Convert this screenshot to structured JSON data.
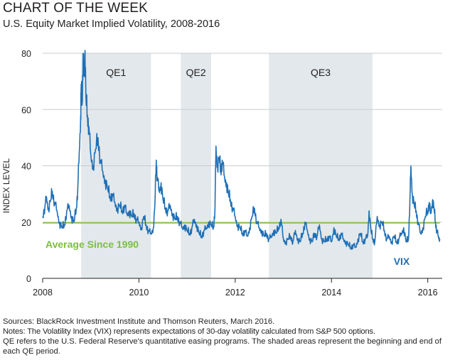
{
  "header": {
    "title": "CHART OF THE WEEK",
    "subtitle": "U.S. Equity Market Implied Volatility, 2008-2016"
  },
  "notes": {
    "sources": "Sources: BlackRock Investment Institute and Thomson Reuters, March 2016.",
    "line1": "Notes: The Volatility Index (VIX) represents expectations of 30-day volatility calculated from S&P 500 options.",
    "line2": "QE refers to the U.S. Federal Reserve's quantitative easing programs.  The shaded areas represent the beginning and end of each QE period."
  },
  "colors": {
    "series": "#1f6fb5",
    "average": "#7cbf3f",
    "shade": "#e2e8ec",
    "grid": "#c9cdd0",
    "axis": "#231f20"
  },
  "chart_data": {
    "type": "line",
    "ylabel": "INDEX LEVEL",
    "xlabel": "",
    "xlim": [
      2008.0,
      2016.3
    ],
    "ylim": [
      0,
      80
    ],
    "xticks": [
      2008,
      2010,
      2012,
      2014,
      2016
    ],
    "yticks": [
      0,
      20,
      40,
      60,
      80
    ],
    "grid": true,
    "shaded_periods": [
      {
        "label": "QE1",
        "start": 2008.8,
        "end": 2010.25
      },
      {
        "label": "QE2",
        "start": 2010.87,
        "end": 2011.5
      },
      {
        "label": "QE3",
        "start": 2012.7,
        "end": 2014.85
      }
    ],
    "average_line": {
      "label": "Average Since 1990",
      "value": 19.7
    },
    "series": [
      {
        "name": "VIX",
        "points": [
          [
            2008.0,
            22
          ],
          [
            2008.05,
            26
          ],
          [
            2008.08,
            29
          ],
          [
            2008.12,
            25
          ],
          [
            2008.17,
            28
          ],
          [
            2008.2,
            31
          ],
          [
            2008.25,
            27
          ],
          [
            2008.3,
            24
          ],
          [
            2008.35,
            20
          ],
          [
            2008.4,
            18
          ],
          [
            2008.45,
            19
          ],
          [
            2008.5,
            24
          ],
          [
            2008.55,
            26
          ],
          [
            2008.6,
            22
          ],
          [
            2008.65,
            20
          ],
          [
            2008.7,
            25
          ],
          [
            2008.73,
            32
          ],
          [
            2008.76,
            45
          ],
          [
            2008.79,
            58
          ],
          [
            2008.8,
            69
          ],
          [
            2008.82,
            62
          ],
          [
            2008.84,
            80
          ],
          [
            2008.86,
            72
          ],
          [
            2008.88,
            81
          ],
          [
            2008.9,
            64
          ],
          [
            2008.93,
            58
          ],
          [
            2008.96,
            54
          ],
          [
            2009.0,
            44
          ],
          [
            2009.05,
            40
          ],
          [
            2009.1,
            46
          ],
          [
            2009.15,
            50
          ],
          [
            2009.2,
            42
          ],
          [
            2009.25,
            38
          ],
          [
            2009.3,
            35
          ],
          [
            2009.35,
            32
          ],
          [
            2009.4,
            29
          ],
          [
            2009.45,
            30
          ],
          [
            2009.5,
            27
          ],
          [
            2009.55,
            25
          ],
          [
            2009.6,
            26
          ],
          [
            2009.65,
            24
          ],
          [
            2009.7,
            26
          ],
          [
            2009.75,
            23
          ],
          [
            2009.8,
            24
          ],
          [
            2009.85,
            22
          ],
          [
            2009.9,
            23
          ],
          [
            2009.95,
            21
          ],
          [
            2010.0,
            20
          ],
          [
            2010.05,
            18
          ],
          [
            2010.1,
            22
          ],
          [
            2010.15,
            19
          ],
          [
            2010.2,
            17
          ],
          [
            2010.25,
            16
          ],
          [
            2010.3,
            18
          ],
          [
            2010.33,
            26
          ],
          [
            2010.36,
            42
          ],
          [
            2010.38,
            36
          ],
          [
            2010.42,
            31
          ],
          [
            2010.46,
            34
          ],
          [
            2010.5,
            28
          ],
          [
            2010.55,
            25
          ],
          [
            2010.6,
            24
          ],
          [
            2010.65,
            26
          ],
          [
            2010.7,
            23
          ],
          [
            2010.75,
            21
          ],
          [
            2010.8,
            22
          ],
          [
            2010.85,
            20
          ],
          [
            2010.9,
            18
          ],
          [
            2010.95,
            19
          ],
          [
            2011.0,
            17
          ],
          [
            2011.05,
            16
          ],
          [
            2011.1,
            18
          ],
          [
            2011.15,
            21
          ],
          [
            2011.2,
            19
          ],
          [
            2011.25,
            16
          ],
          [
            2011.3,
            15
          ],
          [
            2011.35,
            17
          ],
          [
            2011.4,
            18
          ],
          [
            2011.45,
            20
          ],
          [
            2011.5,
            19
          ],
          [
            2011.55,
            18
          ],
          [
            2011.58,
            25
          ],
          [
            2011.6,
            47
          ],
          [
            2011.63,
            40
          ],
          [
            2011.67,
            43
          ],
          [
            2011.7,
            38
          ],
          [
            2011.73,
            42
          ],
          [
            2011.78,
            36
          ],
          [
            2011.82,
            34
          ],
          [
            2011.86,
            30
          ],
          [
            2011.9,
            28
          ],
          [
            2011.95,
            25
          ],
          [
            2012.0,
            22
          ],
          [
            2012.05,
            19
          ],
          [
            2012.1,
            18
          ],
          [
            2012.15,
            16
          ],
          [
            2012.2,
            17
          ],
          [
            2012.25,
            15
          ],
          [
            2012.3,
            18
          ],
          [
            2012.35,
            22
          ],
          [
            2012.4,
            25
          ],
          [
            2012.45,
            20
          ],
          [
            2012.5,
            18
          ],
          [
            2012.55,
            17
          ],
          [
            2012.6,
            15
          ],
          [
            2012.65,
            16
          ],
          [
            2012.7,
            14
          ],
          [
            2012.75,
            15
          ],
          [
            2012.8,
            17
          ],
          [
            2012.85,
            16
          ],
          [
            2012.9,
            18
          ],
          [
            2012.95,
            21
          ],
          [
            2013.0,
            14
          ],
          [
            2013.05,
            13
          ],
          [
            2013.1,
            14
          ],
          [
            2013.15,
            15
          ],
          [
            2013.2,
            13
          ],
          [
            2013.25,
            17
          ],
          [
            2013.3,
            14
          ],
          [
            2013.35,
            13
          ],
          [
            2013.4,
            16
          ],
          [
            2013.45,
            20
          ],
          [
            2013.5,
            17
          ],
          [
            2013.55,
            14
          ],
          [
            2013.6,
            13
          ],
          [
            2013.65,
            16
          ],
          [
            2013.7,
            15
          ],
          [
            2013.75,
            19
          ],
          [
            2013.8,
            14
          ],
          [
            2013.85,
            13
          ],
          [
            2013.9,
            14
          ],
          [
            2013.95,
            15
          ],
          [
            2014.0,
            13
          ],
          [
            2014.05,
            18
          ],
          [
            2014.1,
            15
          ],
          [
            2014.15,
            14
          ],
          [
            2014.2,
            16
          ],
          [
            2014.25,
            14
          ],
          [
            2014.3,
            13
          ],
          [
            2014.35,
            12
          ],
          [
            2014.4,
            11
          ],
          [
            2014.45,
            12
          ],
          [
            2014.5,
            11
          ],
          [
            2014.55,
            14
          ],
          [
            2014.6,
            16
          ],
          [
            2014.65,
            13
          ],
          [
            2014.7,
            14
          ],
          [
            2014.75,
            15
          ],
          [
            2014.78,
            24
          ],
          [
            2014.82,
            17
          ],
          [
            2014.86,
            14
          ],
          [
            2014.9,
            13
          ],
          [
            2014.95,
            22
          ],
          [
            2015.0,
            19
          ],
          [
            2015.05,
            20
          ],
          [
            2015.1,
            17
          ],
          [
            2015.15,
            14
          ],
          [
            2015.2,
            15
          ],
          [
            2015.25,
            13
          ],
          [
            2015.3,
            15
          ],
          [
            2015.35,
            13
          ],
          [
            2015.4,
            14
          ],
          [
            2015.45,
            16
          ],
          [
            2015.5,
            18
          ],
          [
            2015.55,
            13
          ],
          [
            2015.6,
            14
          ],
          [
            2015.63,
            28
          ],
          [
            2015.65,
            40
          ],
          [
            2015.68,
            30
          ],
          [
            2015.72,
            26
          ],
          [
            2015.76,
            24
          ],
          [
            2015.8,
            20
          ],
          [
            2015.85,
            16
          ],
          [
            2015.9,
            18
          ],
          [
            2015.95,
            22
          ],
          [
            2016.0,
            24
          ],
          [
            2016.03,
            27
          ],
          [
            2016.06,
            23
          ],
          [
            2016.1,
            28
          ],
          [
            2016.13,
            25
          ],
          [
            2016.16,
            20
          ],
          [
            2016.19,
            17
          ],
          [
            2016.22,
            15
          ],
          [
            2016.25,
            14
          ]
        ]
      }
    ]
  }
}
